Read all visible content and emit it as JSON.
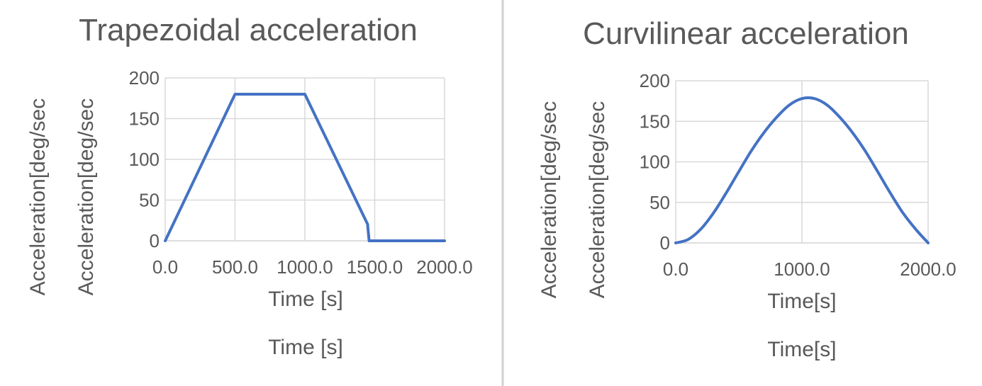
{
  "divider_color": "#d0d0d0",
  "chart_data": [
    {
      "type": "line",
      "title": "Trapezoidal acceleration",
      "xlabel": "Time [s]",
      "xlabel_repeat": "Time [s]",
      "ylabel": "Acceleration[deg/sec",
      "ylabel_repeat": "Acceleration[deg/sec",
      "xlim": [
        0,
        2000
      ],
      "ylim": [
        0,
        200
      ],
      "x_ticks": [
        "0.0",
        "500.0",
        "1000.0",
        "1500.0",
        "2000.0"
      ],
      "x_tick_values": [
        0,
        500,
        1000,
        1500,
        2000
      ],
      "y_ticks": [
        "0",
        "50",
        "100",
        "150",
        "200"
      ],
      "y_tick_values": [
        0,
        50,
        100,
        150,
        200
      ],
      "grid": true,
      "legend": "none",
      "line_color": "#4472c4",
      "series": [
        {
          "x": [
            0,
            500,
            1000,
            1450,
            1450,
            1460,
            2000
          ],
          "y": [
            0,
            180,
            180,
            20,
            18,
            0,
            0
          ]
        }
      ]
    },
    {
      "type": "line",
      "title": "Curvilinear acceleration",
      "xlabel": "Time[s]",
      "xlabel_repeat": "Time[s]",
      "ylabel": "Acceleration[deg/sec",
      "ylabel_repeat": "Acceleration[deg/sec",
      "xlim": [
        0,
        2000
      ],
      "ylim": [
        0,
        200
      ],
      "x_ticks": [
        "0.0",
        "1000.0",
        "2000.0"
      ],
      "x_tick_values": [
        0,
        1000,
        2000
      ],
      "y_ticks": [
        "0",
        "50",
        "100",
        "150",
        "200"
      ],
      "y_tick_values": [
        0,
        50,
        100,
        150,
        200
      ],
      "grid": true,
      "legend": "none",
      "line_color": "#4472c4",
      "series": [
        {
          "x": [
            0,
            100,
            200,
            300,
            400,
            500,
            600,
            700,
            800,
            900,
            1000,
            1100,
            1200,
            1300,
            1400,
            1500,
            1600,
            1700,
            1800,
            1900,
            2000
          ],
          "y": [
            0,
            4.4,
            17.2,
            37.1,
            61.6,
            88.0,
            113.8,
            136.2,
            155.0,
            170.0,
            178.0,
            178.0,
            170.0,
            155.0,
            136.2,
            113.8,
            88.0,
            61.6,
            37.1,
            17.2,
            0
          ]
        }
      ]
    }
  ]
}
